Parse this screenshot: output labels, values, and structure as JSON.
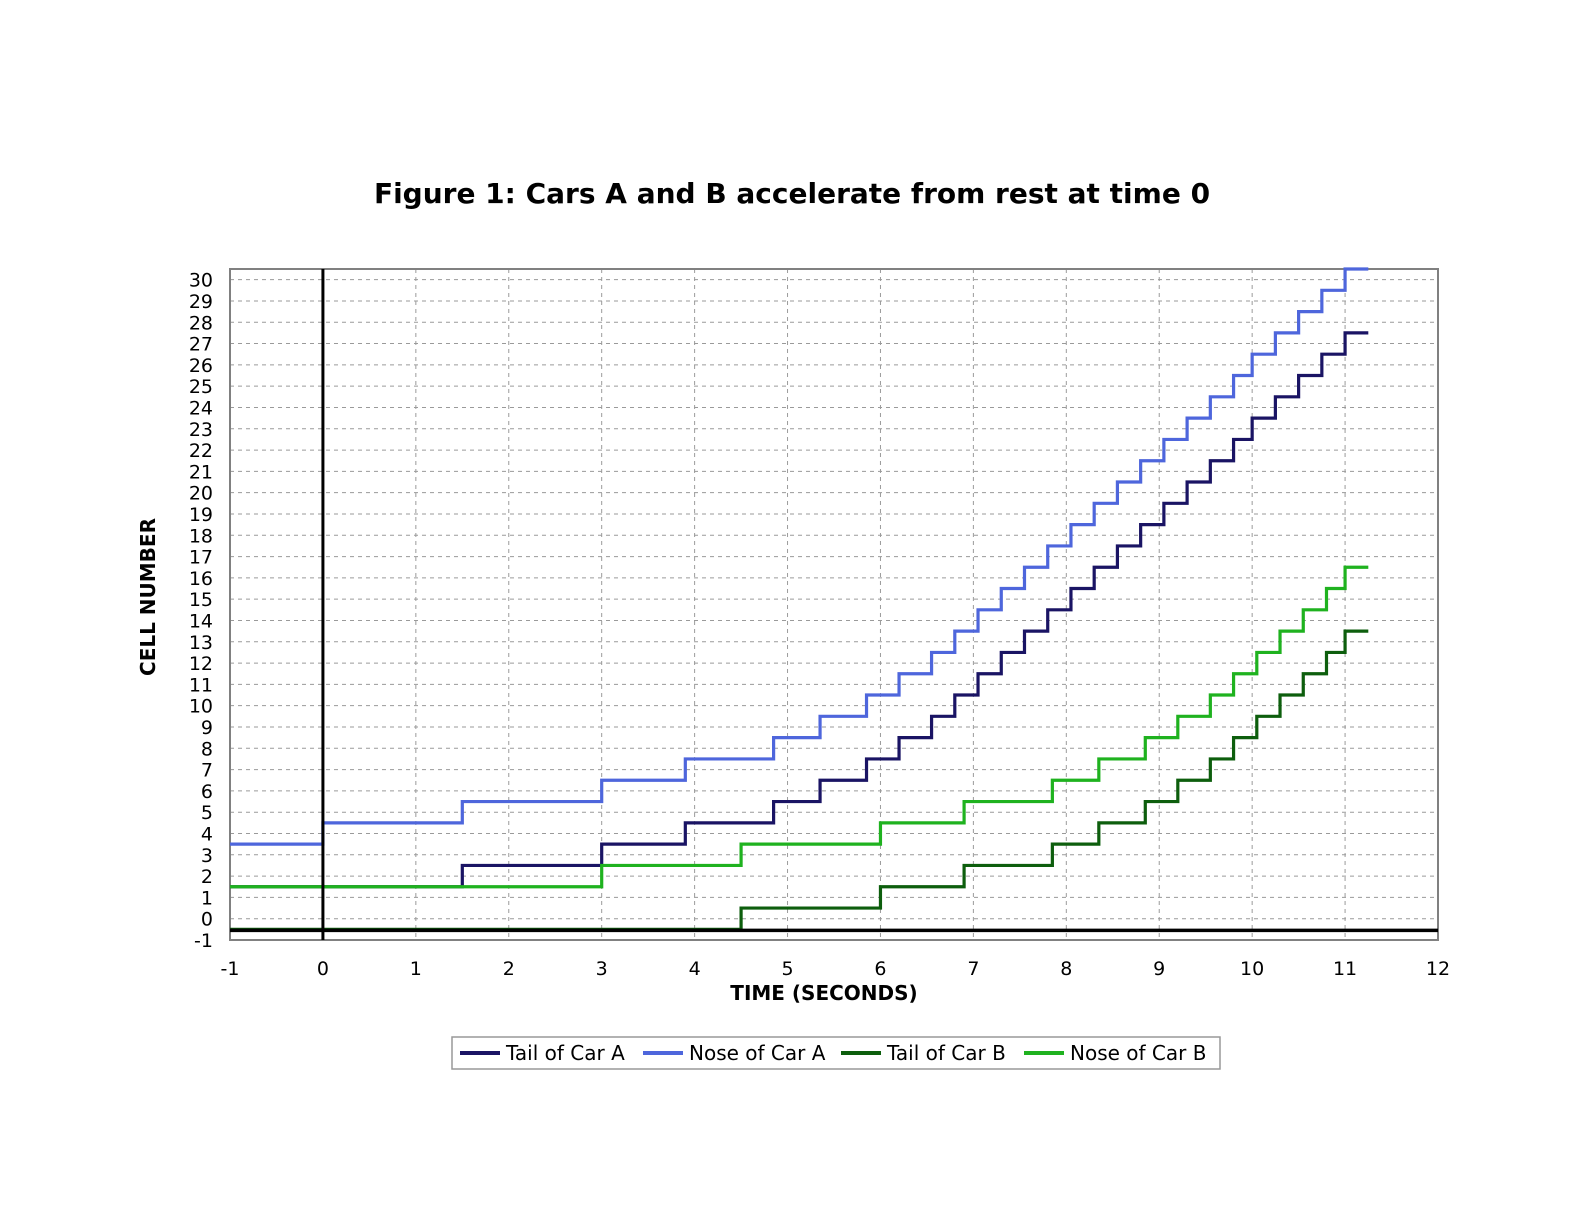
{
  "chart_data": {
    "type": "line",
    "title": "Figure 1: Cars A and B accelerate from rest at time 0",
    "xlabel": "TIME (SECONDS)",
    "ylabel": "CELL NUMBER",
    "xlim": [
      -1,
      12
    ],
    "ylim": [
      -1,
      30.5
    ],
    "xticks": [
      "-1",
      "0",
      "1",
      "2",
      "3",
      "4",
      "5",
      "6",
      "7",
      "8",
      "9",
      "10",
      "11",
      "12"
    ],
    "yticks": [
      "-1",
      "0",
      "1",
      "2",
      "3",
      "4",
      "5",
      "6",
      "7",
      "8",
      "9",
      "10",
      "11",
      "12",
      "13",
      "14",
      "15",
      "16",
      "17",
      "18",
      "19",
      "20",
      "21",
      "22",
      "23",
      "24",
      "25",
      "26",
      "27",
      "28",
      "29",
      "30"
    ],
    "grid": true,
    "step": true,
    "legend_position": "bottom",
    "series": [
      {
        "name": "Tail of Car A",
        "color": "#1a1464",
        "start": [
          -1,
          1.5
        ],
        "steps": [
          [
            1.5,
            2.5
          ],
          [
            3.0,
            3.5
          ],
          [
            3.9,
            4.5
          ],
          [
            4.85,
            5.5
          ],
          [
            5.35,
            6.5
          ],
          [
            5.85,
            7.5
          ],
          [
            6.2,
            8.5
          ],
          [
            6.55,
            9.5
          ],
          [
            6.8,
            10.5
          ],
          [
            7.05,
            11.5
          ],
          [
            7.3,
            12.5
          ],
          [
            7.55,
            13.5
          ],
          [
            7.8,
            14.5
          ],
          [
            8.05,
            15.5
          ],
          [
            8.3,
            16.5
          ],
          [
            8.55,
            17.5
          ],
          [
            8.8,
            18.5
          ],
          [
            9.05,
            19.5
          ],
          [
            9.3,
            20.5
          ],
          [
            9.55,
            21.5
          ],
          [
            9.8,
            22.5
          ],
          [
            10.0,
            23.5
          ],
          [
            10.25,
            24.5
          ],
          [
            10.5,
            25.5
          ],
          [
            10.75,
            26.5
          ],
          [
            11.0,
            27.5
          ]
        ],
        "end_x": 11.25
      },
      {
        "name": "Nose of Car A",
        "color": "#4e66dc",
        "start": [
          -1,
          3.5
        ],
        "steps": [
          [
            0.0,
            4.5
          ],
          [
            1.5,
            5.5
          ],
          [
            3.0,
            6.5
          ],
          [
            3.9,
            7.5
          ],
          [
            4.85,
            8.5
          ],
          [
            5.35,
            9.5
          ],
          [
            5.85,
            10.5
          ],
          [
            6.2,
            11.5
          ],
          [
            6.55,
            12.5
          ],
          [
            6.8,
            13.5
          ],
          [
            7.05,
            14.5
          ],
          [
            7.3,
            15.5
          ],
          [
            7.55,
            16.5
          ],
          [
            7.8,
            17.5
          ],
          [
            8.05,
            18.5
          ],
          [
            8.3,
            19.5
          ],
          [
            8.55,
            20.5
          ],
          [
            8.8,
            21.5
          ],
          [
            9.05,
            22.5
          ],
          [
            9.3,
            23.5
          ],
          [
            9.55,
            24.5
          ],
          [
            9.8,
            25.5
          ],
          [
            10.0,
            26.5
          ],
          [
            10.25,
            27.5
          ],
          [
            10.5,
            28.5
          ],
          [
            10.75,
            29.5
          ],
          [
            11.0,
            30.5
          ]
        ],
        "end_x": 11.25
      },
      {
        "name": "Tail of Car B",
        "color": "#0d5e0d",
        "start": [
          -1,
          -0.5
        ],
        "steps": [
          [
            4.5,
            0.5
          ],
          [
            6.0,
            1.5
          ],
          [
            6.9,
            2.5
          ],
          [
            7.85,
            3.5
          ],
          [
            8.35,
            4.5
          ],
          [
            8.85,
            5.5
          ],
          [
            9.2,
            6.5
          ],
          [
            9.55,
            7.5
          ],
          [
            9.8,
            8.5
          ],
          [
            10.05,
            9.5
          ],
          [
            10.3,
            10.5
          ],
          [
            10.55,
            11.5
          ],
          [
            10.8,
            12.5
          ],
          [
            11.0,
            13.5
          ]
        ],
        "end_x": 11.25
      },
      {
        "name": "Nose of Car B",
        "color": "#1fb21f",
        "start": [
          -1,
          1.5
        ],
        "steps": [
          [
            3.0,
            2.5
          ],
          [
            4.5,
            3.5
          ],
          [
            6.0,
            4.5
          ],
          [
            6.9,
            5.5
          ],
          [
            7.85,
            6.5
          ],
          [
            8.35,
            7.5
          ],
          [
            8.85,
            8.5
          ],
          [
            9.2,
            9.5
          ],
          [
            9.55,
            10.5
          ],
          [
            9.8,
            11.5
          ],
          [
            10.05,
            12.5
          ],
          [
            10.3,
            13.5
          ],
          [
            10.55,
            14.5
          ],
          [
            10.8,
            15.5
          ],
          [
            11.0,
            16.5
          ]
        ],
        "end_x": 11.25
      }
    ]
  }
}
